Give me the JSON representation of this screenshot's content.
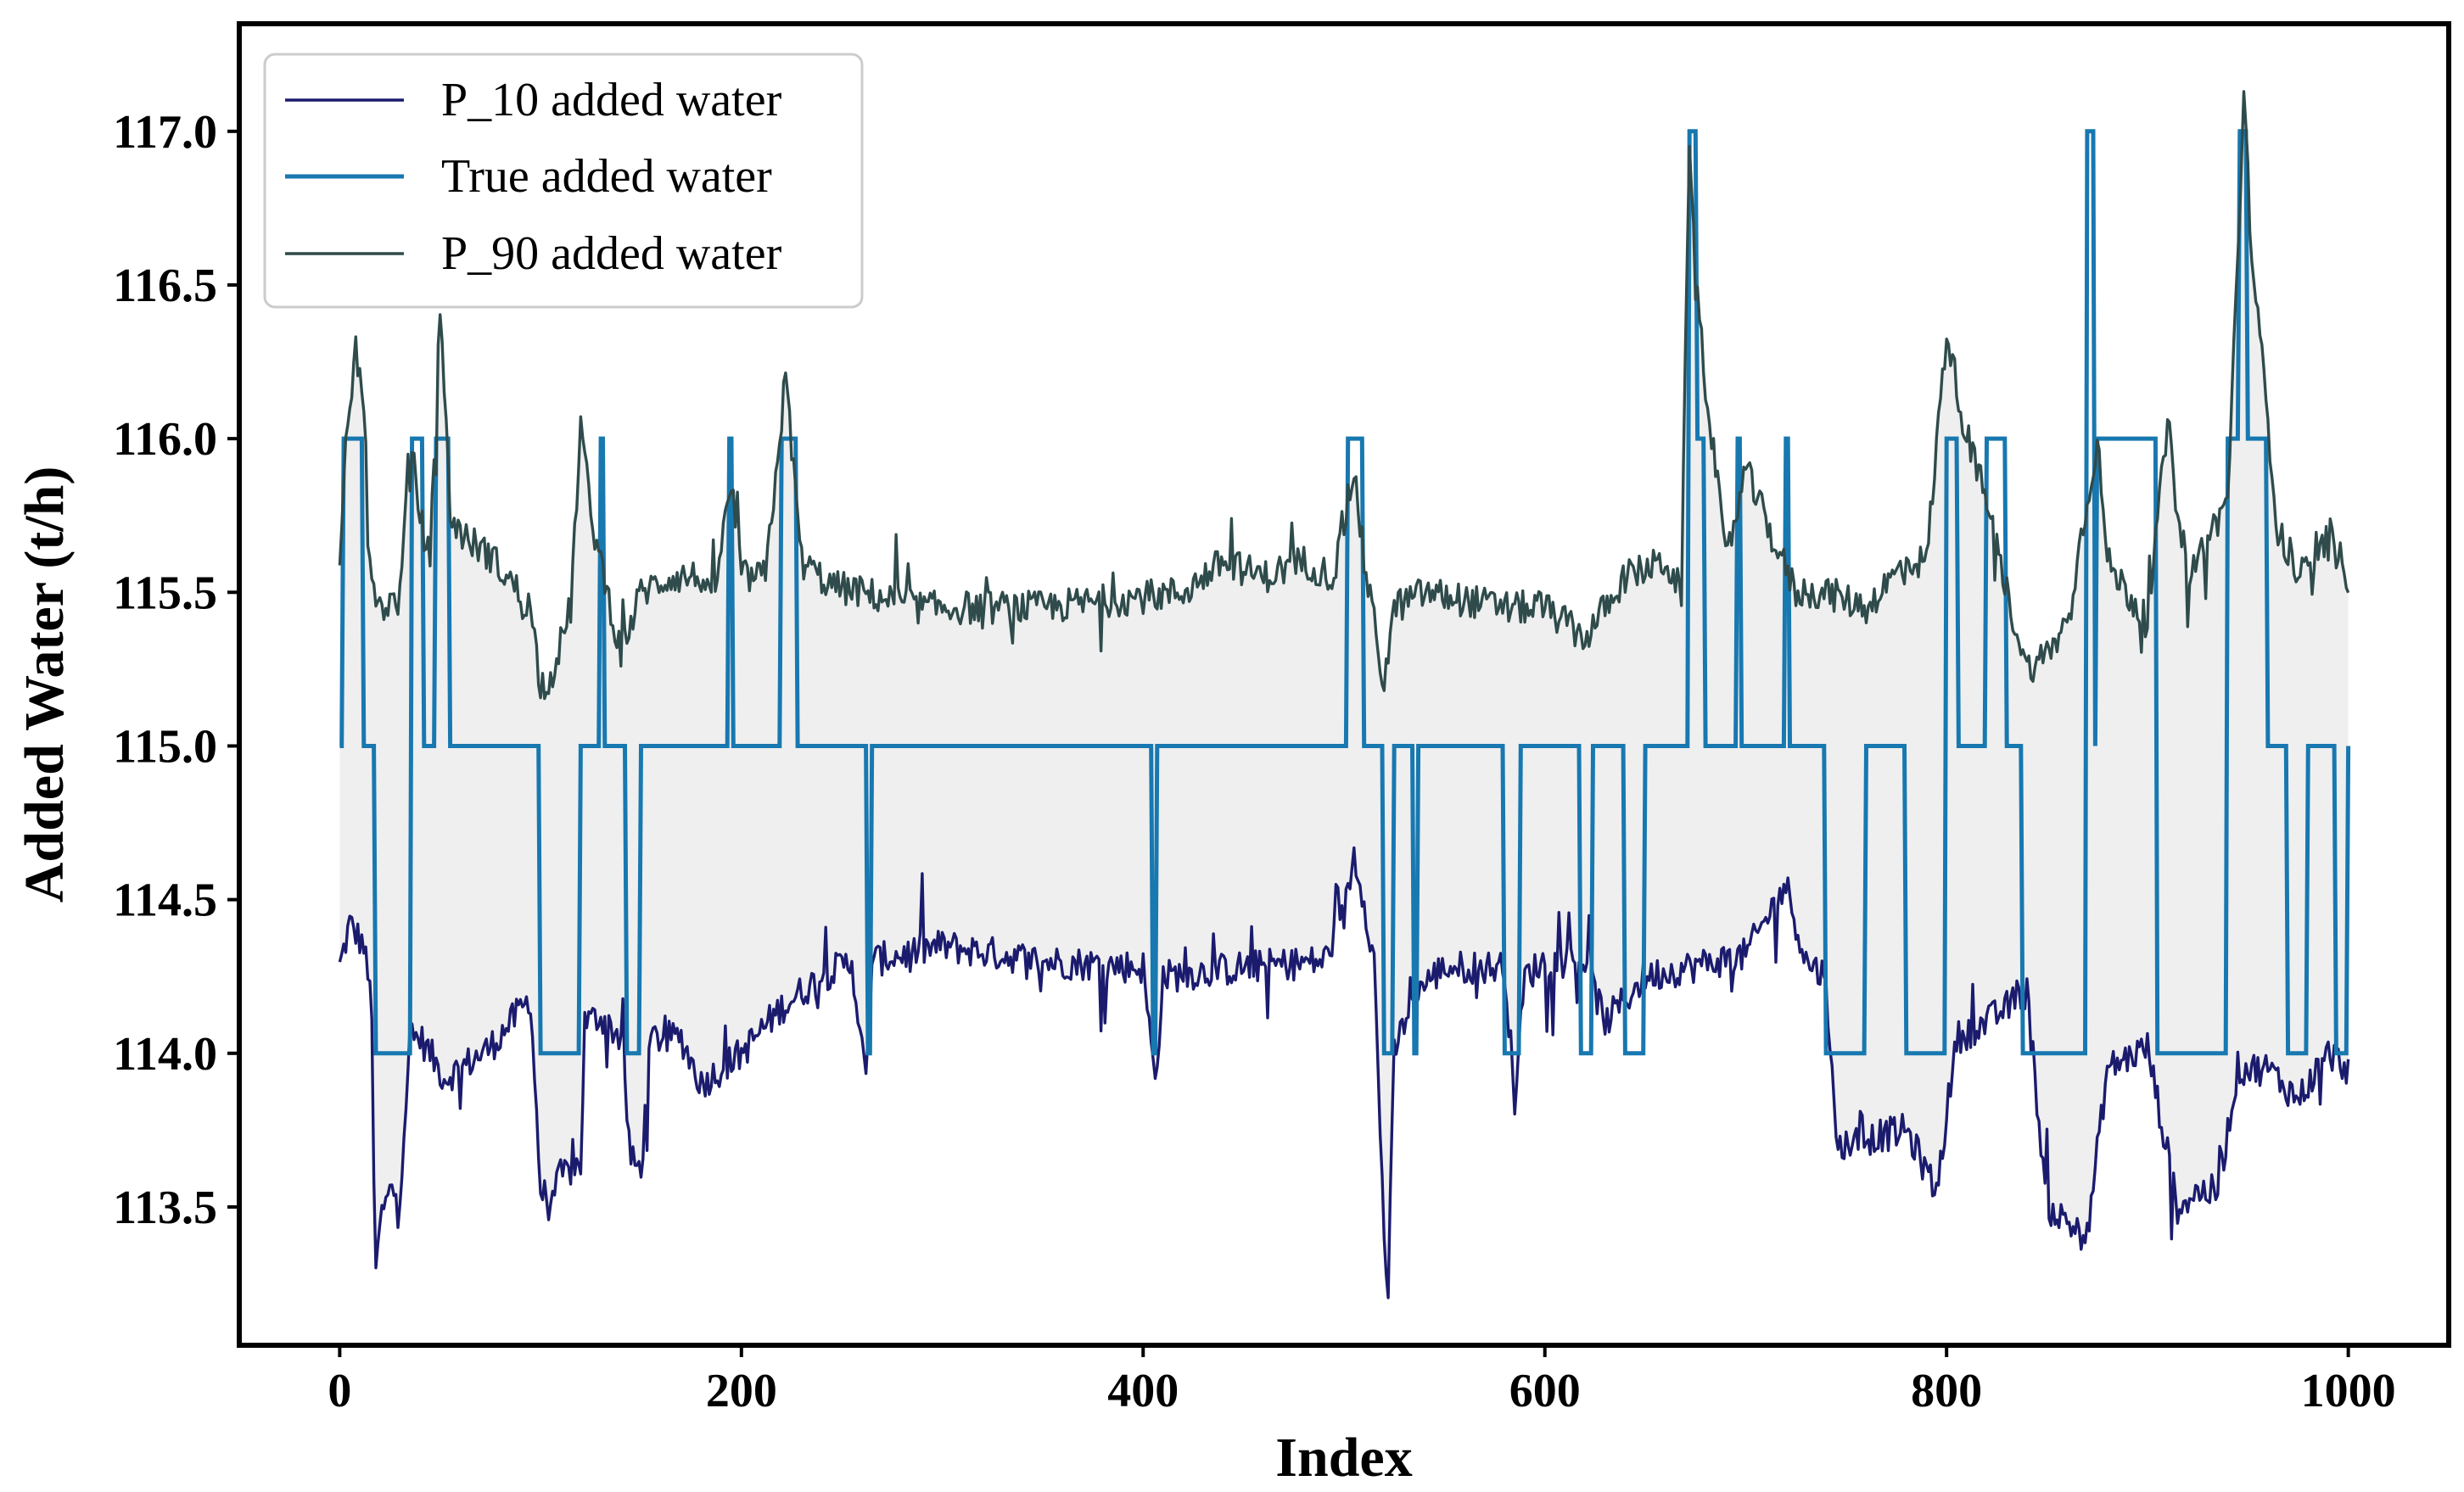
{
  "chart_data": {
    "type": "line",
    "title": "",
    "xlabel": "Index",
    "ylabel": "Added Water (t/h)",
    "xlim": [
      -50,
      1050
    ],
    "ylim": [
      113.05,
      117.35
    ],
    "xticks": [
      0,
      200,
      400,
      600,
      800,
      1000
    ],
    "xtick_labels": [
      "0",
      "200",
      "400",
      "600",
      "800",
      "1000"
    ],
    "yticks": [
      113.5,
      114.0,
      114.5,
      115.0,
      115.5,
      116.0,
      116.5,
      117.0
    ],
    "ytick_labels": [
      "113.5",
      "114.0",
      "114.5",
      "115.0",
      "115.5",
      "116.0",
      "116.5",
      "117.0"
    ],
    "legend_position": "upper-left",
    "interval_fill": {
      "between": [
        "P_10 added water",
        "P_90 added water"
      ],
      "color": "#efefef"
    },
    "series": [
      {
        "name": "P_10 added water",
        "color": "#1b1b6e",
        "style": "noisy",
        "points": [
          [
            0,
            114.28
          ],
          [
            5,
            114.42
          ],
          [
            12,
            114.35
          ],
          [
            16,
            114.15
          ],
          [
            17,
            113.6
          ],
          [
            18,
            113.25
          ],
          [
            20,
            113.45
          ],
          [
            25,
            113.55
          ],
          [
            30,
            113.55
          ],
          [
            35,
            114.05
          ],
          [
            40,
            114.05
          ],
          [
            45,
            114.0
          ],
          [
            52,
            113.92
          ],
          [
            60,
            113.95
          ],
          [
            75,
            114.02
          ],
          [
            95,
            114.18
          ],
          [
            100,
            113.55
          ],
          [
            105,
            113.52
          ],
          [
            110,
            113.6
          ],
          [
            120,
            113.64
          ],
          [
            122,
            114.1
          ],
          [
            130,
            114.12
          ],
          [
            140,
            114.05
          ],
          [
            145,
            113.65
          ],
          [
            150,
            113.62
          ],
          [
            155,
            114.05
          ],
          [
            170,
            114.05
          ],
          [
            180,
            113.9
          ],
          [
            190,
            113.95
          ],
          [
            200,
            114.0
          ],
          [
            220,
            114.15
          ],
          [
            240,
            114.25
          ],
          [
            255,
            114.3
          ],
          [
            262,
            113.9
          ],
          [
            265,
            114.3
          ],
          [
            300,
            114.35
          ],
          [
            350,
            114.3
          ],
          [
            400,
            114.28
          ],
          [
            406,
            113.9
          ],
          [
            410,
            114.25
          ],
          [
            450,
            114.28
          ],
          [
            490,
            114.3
          ],
          [
            500,
            114.45
          ],
          [
            505,
            114.65
          ],
          [
            510,
            114.5
          ],
          [
            515,
            114.3
          ],
          [
            520,
            113.4
          ],
          [
            522,
            113.22
          ],
          [
            525,
            114.0
          ],
          [
            535,
            114.2
          ],
          [
            550,
            114.28
          ],
          [
            580,
            114.28
          ],
          [
            585,
            113.85
          ],
          [
            590,
            114.25
          ],
          [
            600,
            114.3
          ],
          [
            620,
            114.3
          ],
          [
            630,
            114.1
          ],
          [
            650,
            114.25
          ],
          [
            700,
            114.32
          ],
          [
            720,
            114.55
          ],
          [
            730,
            114.3
          ],
          [
            740,
            114.25
          ],
          [
            745,
            113.7
          ],
          [
            780,
            113.75
          ],
          [
            795,
            113.55
          ],
          [
            805,
            114.05
          ],
          [
            820,
            114.1
          ],
          [
            840,
            114.2
          ],
          [
            850,
            113.5
          ],
          [
            860,
            113.45
          ],
          [
            870,
            113.4
          ],
          [
            880,
            113.95
          ],
          [
            900,
            114.02
          ],
          [
            915,
            113.5
          ],
          [
            925,
            113.55
          ],
          [
            935,
            113.55
          ],
          [
            945,
            113.95
          ],
          [
            960,
            113.95
          ],
          [
            975,
            113.85
          ],
          [
            990,
            114.0
          ],
          [
            1000,
            113.95
          ]
        ]
      },
      {
        "name": "True added water",
        "color": "#1878b0",
        "style": "steps",
        "base": 115.0,
        "segments": [
          [
            0,
            0,
            115.0
          ],
          [
            2,
            12,
            116.0
          ],
          [
            12,
            18,
            115.0
          ],
          [
            18,
            36,
            114.0
          ],
          [
            36,
            42,
            116.0
          ],
          [
            42,
            48,
            115.0
          ],
          [
            48,
            55,
            116.0
          ],
          [
            55,
            100,
            115.0
          ],
          [
            100,
            120,
            114.0
          ],
          [
            120,
            130,
            115.0
          ],
          [
            130,
            132,
            116.0
          ],
          [
            132,
            143,
            115.0
          ],
          [
            143,
            150,
            114.0
          ],
          [
            150,
            200,
            115.0
          ],
          [
            194,
            196,
            116.0
          ],
          [
            220,
            228,
            116.0
          ],
          [
            263,
            265,
            114.0
          ],
          [
            405,
            407,
            114.0
          ],
          [
            502,
            510,
            116.0
          ],
          [
            510,
            515,
            115.0
          ],
          [
            520,
            525,
            114.0
          ],
          [
            535,
            537,
            114.0
          ],
          [
            580,
            588,
            114.0
          ],
          [
            618,
            624,
            114.0
          ],
          [
            640,
            650,
            114.0
          ],
          [
            672,
            676,
            117.0
          ],
          [
            676,
            680,
            116.0
          ],
          [
            696,
            698,
            116.0
          ],
          [
            720,
            722,
            116.0
          ],
          [
            740,
            760,
            114.0
          ],
          [
            780,
            800,
            114.0
          ],
          [
            800,
            806,
            116.0
          ],
          [
            820,
            830,
            116.0
          ],
          [
            838,
            842,
            114.0
          ],
          [
            842,
            870,
            114.0
          ],
          [
            870,
            874,
            117.0
          ],
          [
            875,
            880,
            116.0
          ],
          [
            880,
            905,
            116.0
          ],
          [
            905,
            940,
            114.0
          ],
          [
            940,
            946,
            116.0
          ],
          [
            946,
            950,
            117.0
          ],
          [
            950,
            960,
            116.0
          ],
          [
            970,
            980,
            114.0
          ],
          [
            994,
            1000,
            114.0
          ]
        ]
      },
      {
        "name": "P_90 added water",
        "color": "#2f4b4b",
        "style": "noisy",
        "points": [
          [
            0,
            115.55
          ],
          [
            3,
            115.95
          ],
          [
            8,
            116.3
          ],
          [
            12,
            116.1
          ],
          [
            15,
            115.6
          ],
          [
            20,
            115.45
          ],
          [
            30,
            115.48
          ],
          [
            35,
            116.0
          ],
          [
            40,
            115.75
          ],
          [
            45,
            115.6
          ],
          [
            50,
            116.45
          ],
          [
            55,
            115.75
          ],
          [
            62,
            115.68
          ],
          [
            75,
            115.62
          ],
          [
            95,
            115.45
          ],
          [
            100,
            115.2
          ],
          [
            105,
            115.22
          ],
          [
            115,
            115.45
          ],
          [
            120,
            116.05
          ],
          [
            125,
            115.75
          ],
          [
            130,
            115.6
          ],
          [
            140,
            115.3
          ],
          [
            150,
            115.5
          ],
          [
            165,
            115.55
          ],
          [
            180,
            115.55
          ],
          [
            185,
            115.45
          ],
          [
            195,
            115.85
          ],
          [
            200,
            115.55
          ],
          [
            212,
            115.55
          ],
          [
            222,
            116.2
          ],
          [
            230,
            115.6
          ],
          [
            245,
            115.52
          ],
          [
            260,
            115.5
          ],
          [
            290,
            115.45
          ],
          [
            350,
            115.45
          ],
          [
            420,
            115.5
          ],
          [
            440,
            115.6
          ],
          [
            460,
            115.55
          ],
          [
            480,
            115.6
          ],
          [
            495,
            115.55
          ],
          [
            505,
            115.9
          ],
          [
            510,
            115.6
          ],
          [
            520,
            115.2
          ],
          [
            525,
            115.45
          ],
          [
            540,
            115.5
          ],
          [
            580,
            115.45
          ],
          [
            600,
            115.45
          ],
          [
            620,
            115.35
          ],
          [
            640,
            115.55
          ],
          [
            660,
            115.6
          ],
          [
            668,
            115.5
          ],
          [
            672,
            117.0
          ],
          [
            675,
            116.5
          ],
          [
            680,
            116.2
          ],
          [
            690,
            115.6
          ],
          [
            700,
            115.9
          ],
          [
            715,
            115.65
          ],
          [
            725,
            115.5
          ],
          [
            740,
            115.5
          ],
          [
            760,
            115.45
          ],
          [
            780,
            115.6
          ],
          [
            790,
            115.6
          ],
          [
            800,
            116.35
          ],
          [
            810,
            116.0
          ],
          [
            820,
            115.8
          ],
          [
            830,
            115.5
          ],
          [
            840,
            115.25
          ],
          [
            850,
            115.3
          ],
          [
            860,
            115.4
          ],
          [
            870,
            115.8
          ],
          [
            875,
            116.0
          ],
          [
            880,
            115.6
          ],
          [
            900,
            115.4
          ],
          [
            910,
            116.05
          ],
          [
            920,
            115.55
          ],
          [
            940,
            115.8
          ],
          [
            948,
            117.1
          ],
          [
            952,
            116.6
          ],
          [
            960,
            116.05
          ],
          [
            965,
            115.7
          ],
          [
            975,
            115.55
          ],
          [
            985,
            115.6
          ],
          [
            990,
            115.7
          ],
          [
            1000,
            115.55
          ]
        ]
      }
    ]
  }
}
